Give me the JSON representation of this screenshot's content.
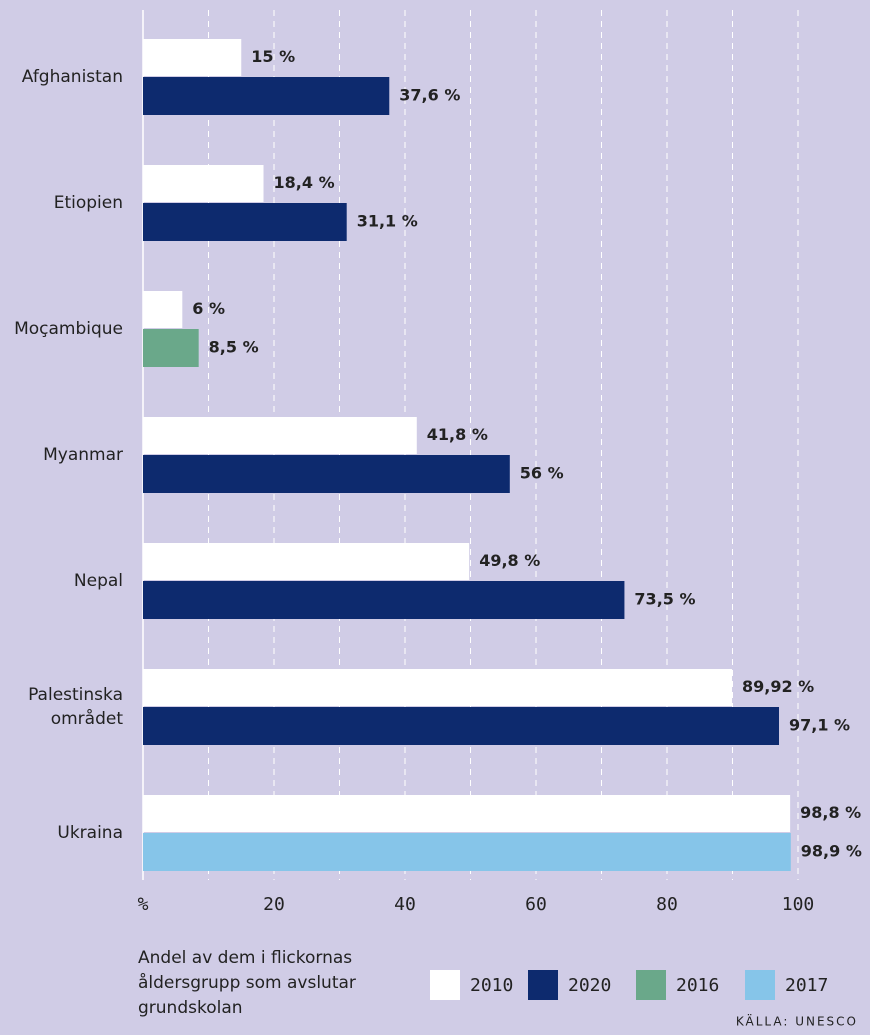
{
  "chart_data": {
    "type": "bar",
    "orientation": "horizontal",
    "categories": [
      "Afghanistan",
      "Etiopien",
      "Moçambique",
      "Myanmar",
      "Nepal",
      "Palestinska\nområdet",
      "Ukraina"
    ],
    "series": [
      {
        "name": "2010",
        "color": "#ffffff",
        "values": [
          15,
          18.4,
          6,
          41.8,
          49.8,
          89.92,
          98.8
        ],
        "value_labels": [
          "15 %",
          "18,4 %",
          "6 %",
          "41,8 %",
          "49,8 %",
          "89,92 %",
          "98,8 %"
        ]
      },
      {
        "name": "2020",
        "color": "#0d2a6e",
        "values": [
          37.6,
          31.1,
          null,
          56,
          73.5,
          97.1,
          null
        ],
        "value_labels": [
          "37,6 %",
          "31,1 %",
          null,
          "56 %",
          "73,5 %",
          "97,1 %",
          null
        ]
      },
      {
        "name": "2016",
        "color": "#6aa88a",
        "values": [
          null,
          null,
          8.5,
          null,
          null,
          null,
          null
        ],
        "value_labels": [
          null,
          null,
          "8,5 %",
          null,
          null,
          null,
          null
        ]
      },
      {
        "name": "2017",
        "color": "#86c5e9",
        "values": [
          null,
          null,
          null,
          null,
          null,
          null,
          98.9
        ],
        "value_labels": [
          null,
          null,
          null,
          null,
          null,
          null,
          "98,9 %"
        ]
      }
    ],
    "xlim": [
      0,
      100
    ],
    "xticks": [
      {
        "value": 0,
        "label": "%"
      },
      20,
      40,
      60,
      80,
      100
    ],
    "minor_xticks": [
      10,
      30,
      50,
      70,
      90
    ],
    "grid": true,
    "xlabel": "Andel av dem i flickornas\nåldersgrupp som avslutar\ngrundskolan",
    "source": "KÄLLA: UNESCO"
  }
}
